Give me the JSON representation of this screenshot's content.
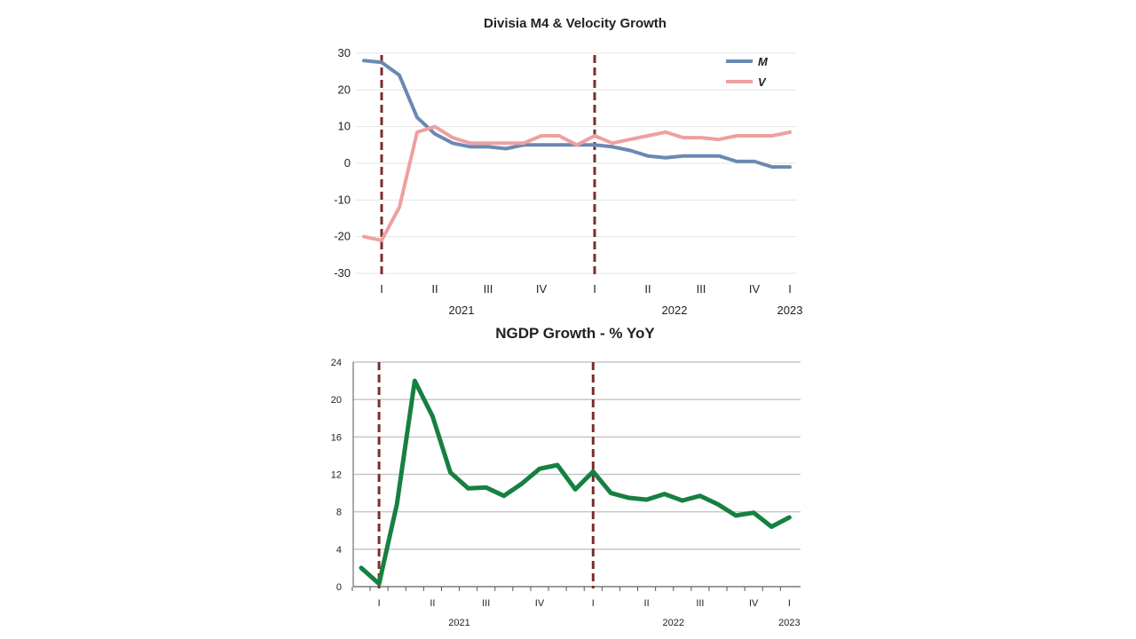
{
  "chart_data": [
    {
      "type": "line",
      "title": "Divisia M4 & Velocity Growth",
      "xlabel": "",
      "ylabel": "",
      "ylim": [
        -30,
        30
      ],
      "yticks": [
        -30,
        -20,
        -10,
        0,
        10,
        20,
        30
      ],
      "grid": true,
      "legend": "top-right",
      "x_ticks": [
        {
          "x": 1,
          "label": "I"
        },
        {
          "x": 4,
          "label": "II"
        },
        {
          "x": 7,
          "label": "III"
        },
        {
          "x": 10,
          "label": "IV"
        },
        {
          "x": 13,
          "label": "I"
        },
        {
          "x": 16,
          "label": "II"
        },
        {
          "x": 19,
          "label": "III"
        },
        {
          "x": 22,
          "label": "IV"
        },
        {
          "x": 24,
          "label": "I"
        }
      ],
      "year_labels": [
        {
          "x": 5.5,
          "label": "2021"
        },
        {
          "x": 17.5,
          "label": "2022"
        },
        {
          "x": 24,
          "label": "2023"
        }
      ],
      "vlines": [
        1,
        13
      ],
      "x": [
        0,
        1,
        2,
        3,
        4,
        5,
        6,
        7,
        8,
        9,
        10,
        11,
        12,
        13,
        14,
        15,
        16,
        17,
        18,
        19,
        20,
        21,
        22,
        23,
        24
      ],
      "series": [
        {
          "name": "M",
          "color": "#6a89b2",
          "values": [
            28,
            27.5,
            24,
            12.5,
            8,
            5.5,
            4.5,
            4.5,
            4,
            5,
            5,
            5,
            5,
            5,
            4.5,
            3.5,
            2,
            1.5,
            2,
            2,
            2,
            0.5,
            0.5,
            -1,
            -1
          ]
        },
        {
          "name": "V",
          "color": "#eda0a0",
          "values": [
            -20,
            -21,
            -12,
            8.5,
            10,
            7,
            5.5,
            5.5,
            5.5,
            5.5,
            7.5,
            7.5,
            5,
            7.5,
            5.5,
            6.5,
            7.5,
            8.5,
            7,
            7,
            6.5,
            7.5,
            7.5,
            7.5,
            8.5
          ]
        }
      ]
    },
    {
      "type": "line",
      "title": "NGDP Growth - % YoY",
      "xlabel": "",
      "ylabel": "",
      "ylim": [
        0,
        24
      ],
      "yticks": [
        0,
        4,
        8,
        12,
        16,
        20,
        24
      ],
      "grid": true,
      "legend": "none",
      "x_ticks": [
        {
          "x": 1,
          "label": "I"
        },
        {
          "x": 4,
          "label": "II"
        },
        {
          "x": 7,
          "label": "III"
        },
        {
          "x": 10,
          "label": "IV"
        },
        {
          "x": 13,
          "label": "I"
        },
        {
          "x": 16,
          "label": "II"
        },
        {
          "x": 19,
          "label": "III"
        },
        {
          "x": 22,
          "label": "IV"
        },
        {
          "x": 24,
          "label": "I"
        }
      ],
      "year_labels": [
        {
          "x": 5.5,
          "label": "2021"
        },
        {
          "x": 17.5,
          "label": "2022"
        },
        {
          "x": 24,
          "label": "2023"
        }
      ],
      "vlines": [
        1,
        13
      ],
      "x": [
        0,
        1,
        2,
        3,
        4,
        5,
        6,
        7,
        8,
        9,
        10,
        11,
        12,
        13,
        14,
        15,
        16,
        17,
        18,
        19,
        20,
        21,
        22,
        23,
        24
      ],
      "series": [
        {
          "name": "",
          "color": "#168040",
          "values": [
            2,
            0.3,
            8.8,
            22,
            18.2,
            12.2,
            10.5,
            10.6,
            9.7,
            11,
            12.6,
            13,
            10.4,
            12.3,
            10,
            9.5,
            9.3,
            9.9,
            9.2,
            9.7,
            8.8,
            7.6,
            7.9,
            6.4,
            7.4
          ]
        }
      ]
    }
  ]
}
